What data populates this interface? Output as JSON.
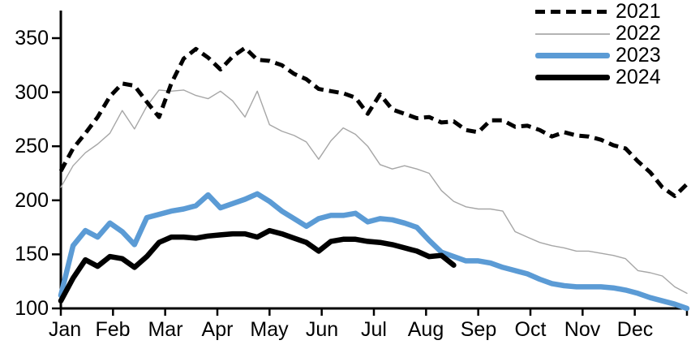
{
  "chart_data": {
    "type": "line",
    "title": "",
    "xlabel": "",
    "ylabel": "",
    "x_axis": {
      "tick_labels": [
        "Jan",
        "Feb",
        "Mar",
        "Apr",
        "May",
        "Jun",
        "Jul",
        "Aug",
        "Sep",
        "Oct",
        "Nov",
        "Dec"
      ],
      "unit": "weekly points within months"
    },
    "y_axis": {
      "tick_labels": [
        "350",
        "300",
        "250",
        "200",
        "150",
        "100"
      ],
      "range": [
        100,
        375
      ],
      "grid": false
    },
    "legend_position": "top-right",
    "series": [
      {
        "name": "2021",
        "color": "#000000",
        "width": 5,
        "dash": "12 7",
        "values": [
          227,
          248,
          262,
          277,
          296,
          308,
          306,
          291,
          277,
          308,
          331,
          340,
          332,
          321,
          333,
          341,
          330,
          329,
          325,
          317,
          312,
          303,
          301,
          299,
          295,
          280,
          298,
          284,
          280,
          276,
          277,
          272,
          273,
          265,
          263,
          274,
          274,
          268,
          269,
          265,
          259,
          263,
          260,
          259,
          256,
          251,
          248,
          236,
          226,
          212,
          204,
          215
        ]
      },
      {
        "name": "2022",
        "color": "#a6a6a6",
        "width": 1.4,
        "dash": "",
        "values": [
          212,
          232,
          244,
          252,
          262,
          283,
          266,
          287,
          302,
          301,
          302,
          297,
          294,
          301,
          292,
          277,
          301,
          270,
          264,
          260,
          254,
          238,
          255,
          267,
          261,
          250,
          233,
          229,
          232,
          229,
          225,
          209,
          199,
          194,
          192,
          192,
          190,
          171,
          166,
          161,
          158,
          156,
          153,
          153,
          151,
          149,
          146,
          135,
          133,
          130,
          120,
          114
        ]
      },
      {
        "name": "2023",
        "color": "#5b9bd5",
        "width": 6.5,
        "dash": "",
        "values": [
          112,
          158,
          172,
          166,
          179,
          171,
          159,
          184,
          187,
          190,
          192,
          195,
          205,
          193,
          197,
          201,
          206,
          199,
          190,
          183,
          176,
          183,
          186,
          186,
          188,
          180,
          183,
          182,
          179,
          175,
          163,
          152,
          148,
          144,
          144,
          142,
          138,
          135,
          132,
          127,
          123,
          121,
          120,
          120,
          120,
          119,
          117,
          114,
          110,
          107,
          104,
          100
        ]
      },
      {
        "name": "2024",
        "color": "#000000",
        "width": 6.5,
        "dash": "",
        "values": [
          107,
          128,
          145,
          139,
          148,
          146,
          138,
          148,
          161,
          166,
          166,
          165,
          167,
          168,
          169,
          169,
          166,
          172,
          169,
          165,
          161,
          153,
          162,
          164,
          164,
          162,
          161,
          159,
          156,
          153,
          148,
          149,
          140
        ]
      }
    ]
  }
}
